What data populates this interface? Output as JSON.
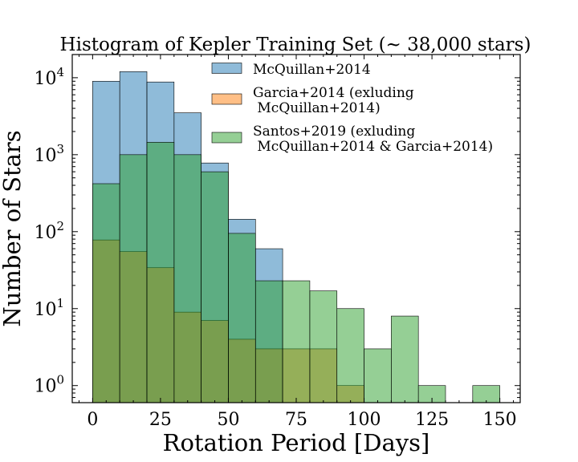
{
  "chart_data": {
    "type": "histogram",
    "title": "Histogram of Kepler Training Set (~ 38,000 stars)",
    "xlabel": "Rotation Period [Days]",
    "ylabel": "Number of Stars",
    "yscale": "log",
    "xlim": [
      -7.5,
      157.5
    ],
    "ylim": [
      0.6,
      20000
    ],
    "x_ticks": [
      0,
      25,
      50,
      75,
      100,
      125,
      150
    ],
    "x_tick_labels": [
      "0",
      "25",
      "50",
      "75",
      "100",
      "125",
      "150"
    ],
    "y_ticks": [
      1,
      10,
      100,
      1000,
      10000
    ],
    "y_tick_labels": [
      {
        "base": "10",
        "exp": "0"
      },
      {
        "base": "10",
        "exp": "1"
      },
      {
        "base": "10",
        "exp": "2"
      },
      {
        "base": "10",
        "exp": "3"
      },
      {
        "base": "10",
        "exp": "4"
      }
    ],
    "bin_edges": [
      0,
      10,
      20,
      30,
      40,
      50,
      60,
      70,
      80,
      90,
      100,
      110,
      120,
      130,
      140,
      150
    ],
    "series": [
      {
        "name": "McQuillan+2014",
        "color": "#1f77b4",
        "values": [
          9000,
          12000,
          8800,
          3500,
          780,
          145,
          60,
          0,
          0,
          0,
          0,
          0,
          0,
          0,
          0
        ]
      },
      {
        "name": "Garcia+2014 (exluding\n McQuillan+2014)",
        "color": "#ff7f0e",
        "values": [
          78,
          55,
          34,
          9,
          7,
          4,
          3,
          3,
          3,
          1,
          0,
          0,
          0,
          0,
          0
        ]
      },
      {
        "name": "Santos+2019 (exluding\n McQuillan+2014 & Garcia+2014)",
        "color": "#2ca02c",
        "values": [
          420,
          1000,
          1450,
          1000,
          600,
          95,
          23,
          23,
          17,
          10,
          3,
          8,
          1,
          0,
          1
        ]
      }
    ],
    "legend": {
      "position": "top-right",
      "entries": [
        {
          "lines": [
            "McQuillan+2014"
          ],
          "color": "#1f77b4"
        },
        {
          "lines": [
            "Garcia+2014 (exluding",
            " McQuillan+2014)"
          ],
          "color": "#ff7f0e"
        },
        {
          "lines": [
            "Santos+2019 (exluding",
            " McQuillan+2014 & Garcia+2014)"
          ],
          "color": "#2ca02c"
        }
      ]
    },
    "bar_alpha": 0.5
  }
}
